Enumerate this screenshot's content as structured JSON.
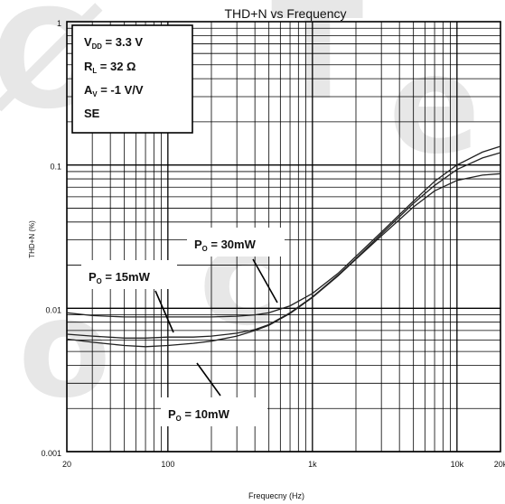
{
  "chart_data": {
    "type": "line",
    "title": "THD+N vs Frequency",
    "xlabel": "Frequecny (Hz)",
    "ylabel": "THD+N (%)",
    "x_scale": "log",
    "y_scale": "log",
    "xlim": [
      20,
      20000
    ],
    "ylim": [
      0.001,
      1
    ],
    "x_ticks": [
      20,
      100,
      1000,
      10000,
      20000
    ],
    "x_tick_labels": [
      "20",
      "100",
      "1k",
      "10k",
      "20k"
    ],
    "y_ticks": [
      0.001,
      0.01,
      0.1,
      1
    ],
    "y_tick_labels": [
      "0.001",
      "0.01",
      "0.1",
      "1"
    ],
    "grid": true,
    "conditions": [
      {
        "sym": "V",
        "sub": "DD",
        "text": " = 3.3 V"
      },
      {
        "sym": "R",
        "sub": "L",
        "text": " = 32 Ω"
      },
      {
        "sym": "A",
        "sub": "V",
        "text": " =    -1 V/V"
      },
      {
        "sym": "SE",
        "sub": "",
        "text": ""
      }
    ],
    "annotations": [
      {
        "sym": "P",
        "sub": "O",
        "text": " = 30mW",
        "points_to": "P_O = 30mW"
      },
      {
        "sym": "P",
        "sub": "O",
        "text": " = 15mW",
        "points_to": "P_O = 15mW"
      },
      {
        "sym": "P",
        "sub": "O",
        "text": " = 10mW",
        "points_to": "P_O = 10mW"
      }
    ],
    "series": [
      {
        "name": "P_O = 30mW",
        "x": [
          20,
          30,
          50,
          70,
          100,
          150,
          200,
          300,
          400,
          500,
          700,
          1000,
          1500,
          2000,
          3000,
          5000,
          7000,
          10000,
          15000,
          20000
        ],
        "y": [
          0.0093,
          0.0089,
          0.0087,
          0.0087,
          0.0087,
          0.0087,
          0.0087,
          0.0088,
          0.009,
          0.0093,
          0.0104,
          0.0127,
          0.0175,
          0.023,
          0.034,
          0.056,
          0.077,
          0.1,
          0.123,
          0.135
        ]
      },
      {
        "name": "P_O = 15mW",
        "x": [
          20,
          30,
          50,
          70,
          100,
          150,
          200,
          300,
          400,
          500,
          700,
          1000,
          1500,
          2000,
          3000,
          5000,
          7000,
          10000,
          15000,
          20000
        ],
        "y": [
          0.0066,
          0.0064,
          0.0062,
          0.0062,
          0.0063,
          0.0063,
          0.0064,
          0.0067,
          0.0071,
          0.0077,
          0.0093,
          0.012,
          0.017,
          0.0222,
          0.033,
          0.054,
          0.072,
          0.093,
          0.112,
          0.122
        ]
      },
      {
        "name": "P_O = 10mW",
        "x": [
          20,
          30,
          50,
          70,
          100,
          150,
          200,
          300,
          400,
          500,
          700,
          1000,
          1500,
          2000,
          3000,
          5000,
          7000,
          10000,
          15000,
          20000
        ],
        "y": [
          0.0061,
          0.0058,
          0.0055,
          0.0054,
          0.0055,
          0.0057,
          0.0059,
          0.0064,
          0.007,
          0.0076,
          0.0092,
          0.0119,
          0.0168,
          0.022,
          0.032,
          0.051,
          0.066,
          0.078,
          0.085,
          0.087
        ]
      }
    ]
  }
}
